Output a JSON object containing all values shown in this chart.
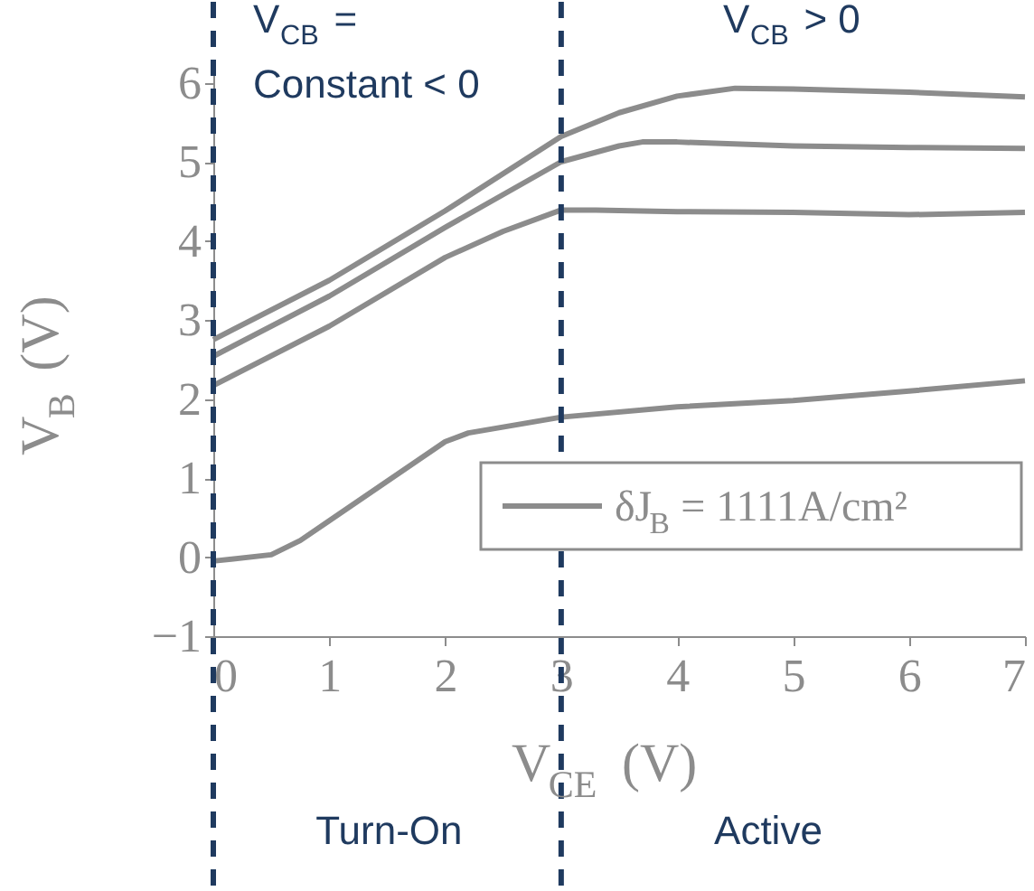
{
  "chart_data": {
    "type": "line",
    "xlabel": "V$_{CE}$ (V)",
    "ylabel": "V$_{B}$ (V)",
    "xlim": [
      0,
      7
    ],
    "xticks": [
      0,
      1,
      2,
      3,
      4,
      5,
      6,
      7
    ],
    "ylim": [
      -1,
      6.2
    ],
    "yticks": [
      -1,
      0,
      1,
      2,
      3,
      4,
      5,
      6
    ],
    "legend": "bottom right",
    "series": [
      {
        "name": "δJ$_{B}$ = 1111A/cm²",
        "color": "#8c8c8c",
        "x": [
          0,
          0.5,
          0.75,
          1,
          1.5,
          2,
          2.2,
          3,
          4,
          5,
          6,
          7
        ],
        "values": [
          -0.05,
          0.03,
          0.21,
          0.46,
          0.96,
          1.46,
          1.57,
          1.77,
          1.9,
          1.98,
          2.1,
          2.23
        ]
      },
      {
        "color": "#8c8c8c",
        "x": [
          0,
          1,
          2,
          2.5,
          3,
          3.3,
          4,
          5,
          6,
          7
        ],
        "values": [
          2.17,
          2.92,
          3.79,
          4.12,
          4.39,
          4.39,
          4.37,
          4.36,
          4.33,
          4.36
        ]
      },
      {
        "color": "#8c8c8c",
        "x": [
          0,
          1,
          2,
          3,
          3.5,
          3.7,
          4,
          5,
          6,
          7
        ],
        "values": [
          2.54,
          3.3,
          4.17,
          5.0,
          5.2,
          5.25,
          5.25,
          5.2,
          5.18,
          5.17
        ]
      },
      {
        "color": "#8c8c8c",
        "x": [
          0,
          1,
          2,
          3,
          3.5,
          4,
          4.5,
          5,
          6,
          7
        ],
        "values": [
          2.75,
          3.5,
          4.38,
          5.32,
          5.62,
          5.83,
          5.93,
          5.92,
          5.88,
          5.82
        ]
      }
    ],
    "ref_lines": [
      {
        "axis": "x",
        "value": 0,
        "color": "#1f3a5f",
        "line_style": "dashed"
      },
      {
        "axis": "x",
        "value": 3,
        "color": "#1f3a5f",
        "line_style": "dashed"
      }
    ],
    "annotations": [
      "V$_{CB}$ = Constant < 0",
      "V$_{CB}$ > 0",
      "Turn-On",
      "Active"
    ]
  }
}
